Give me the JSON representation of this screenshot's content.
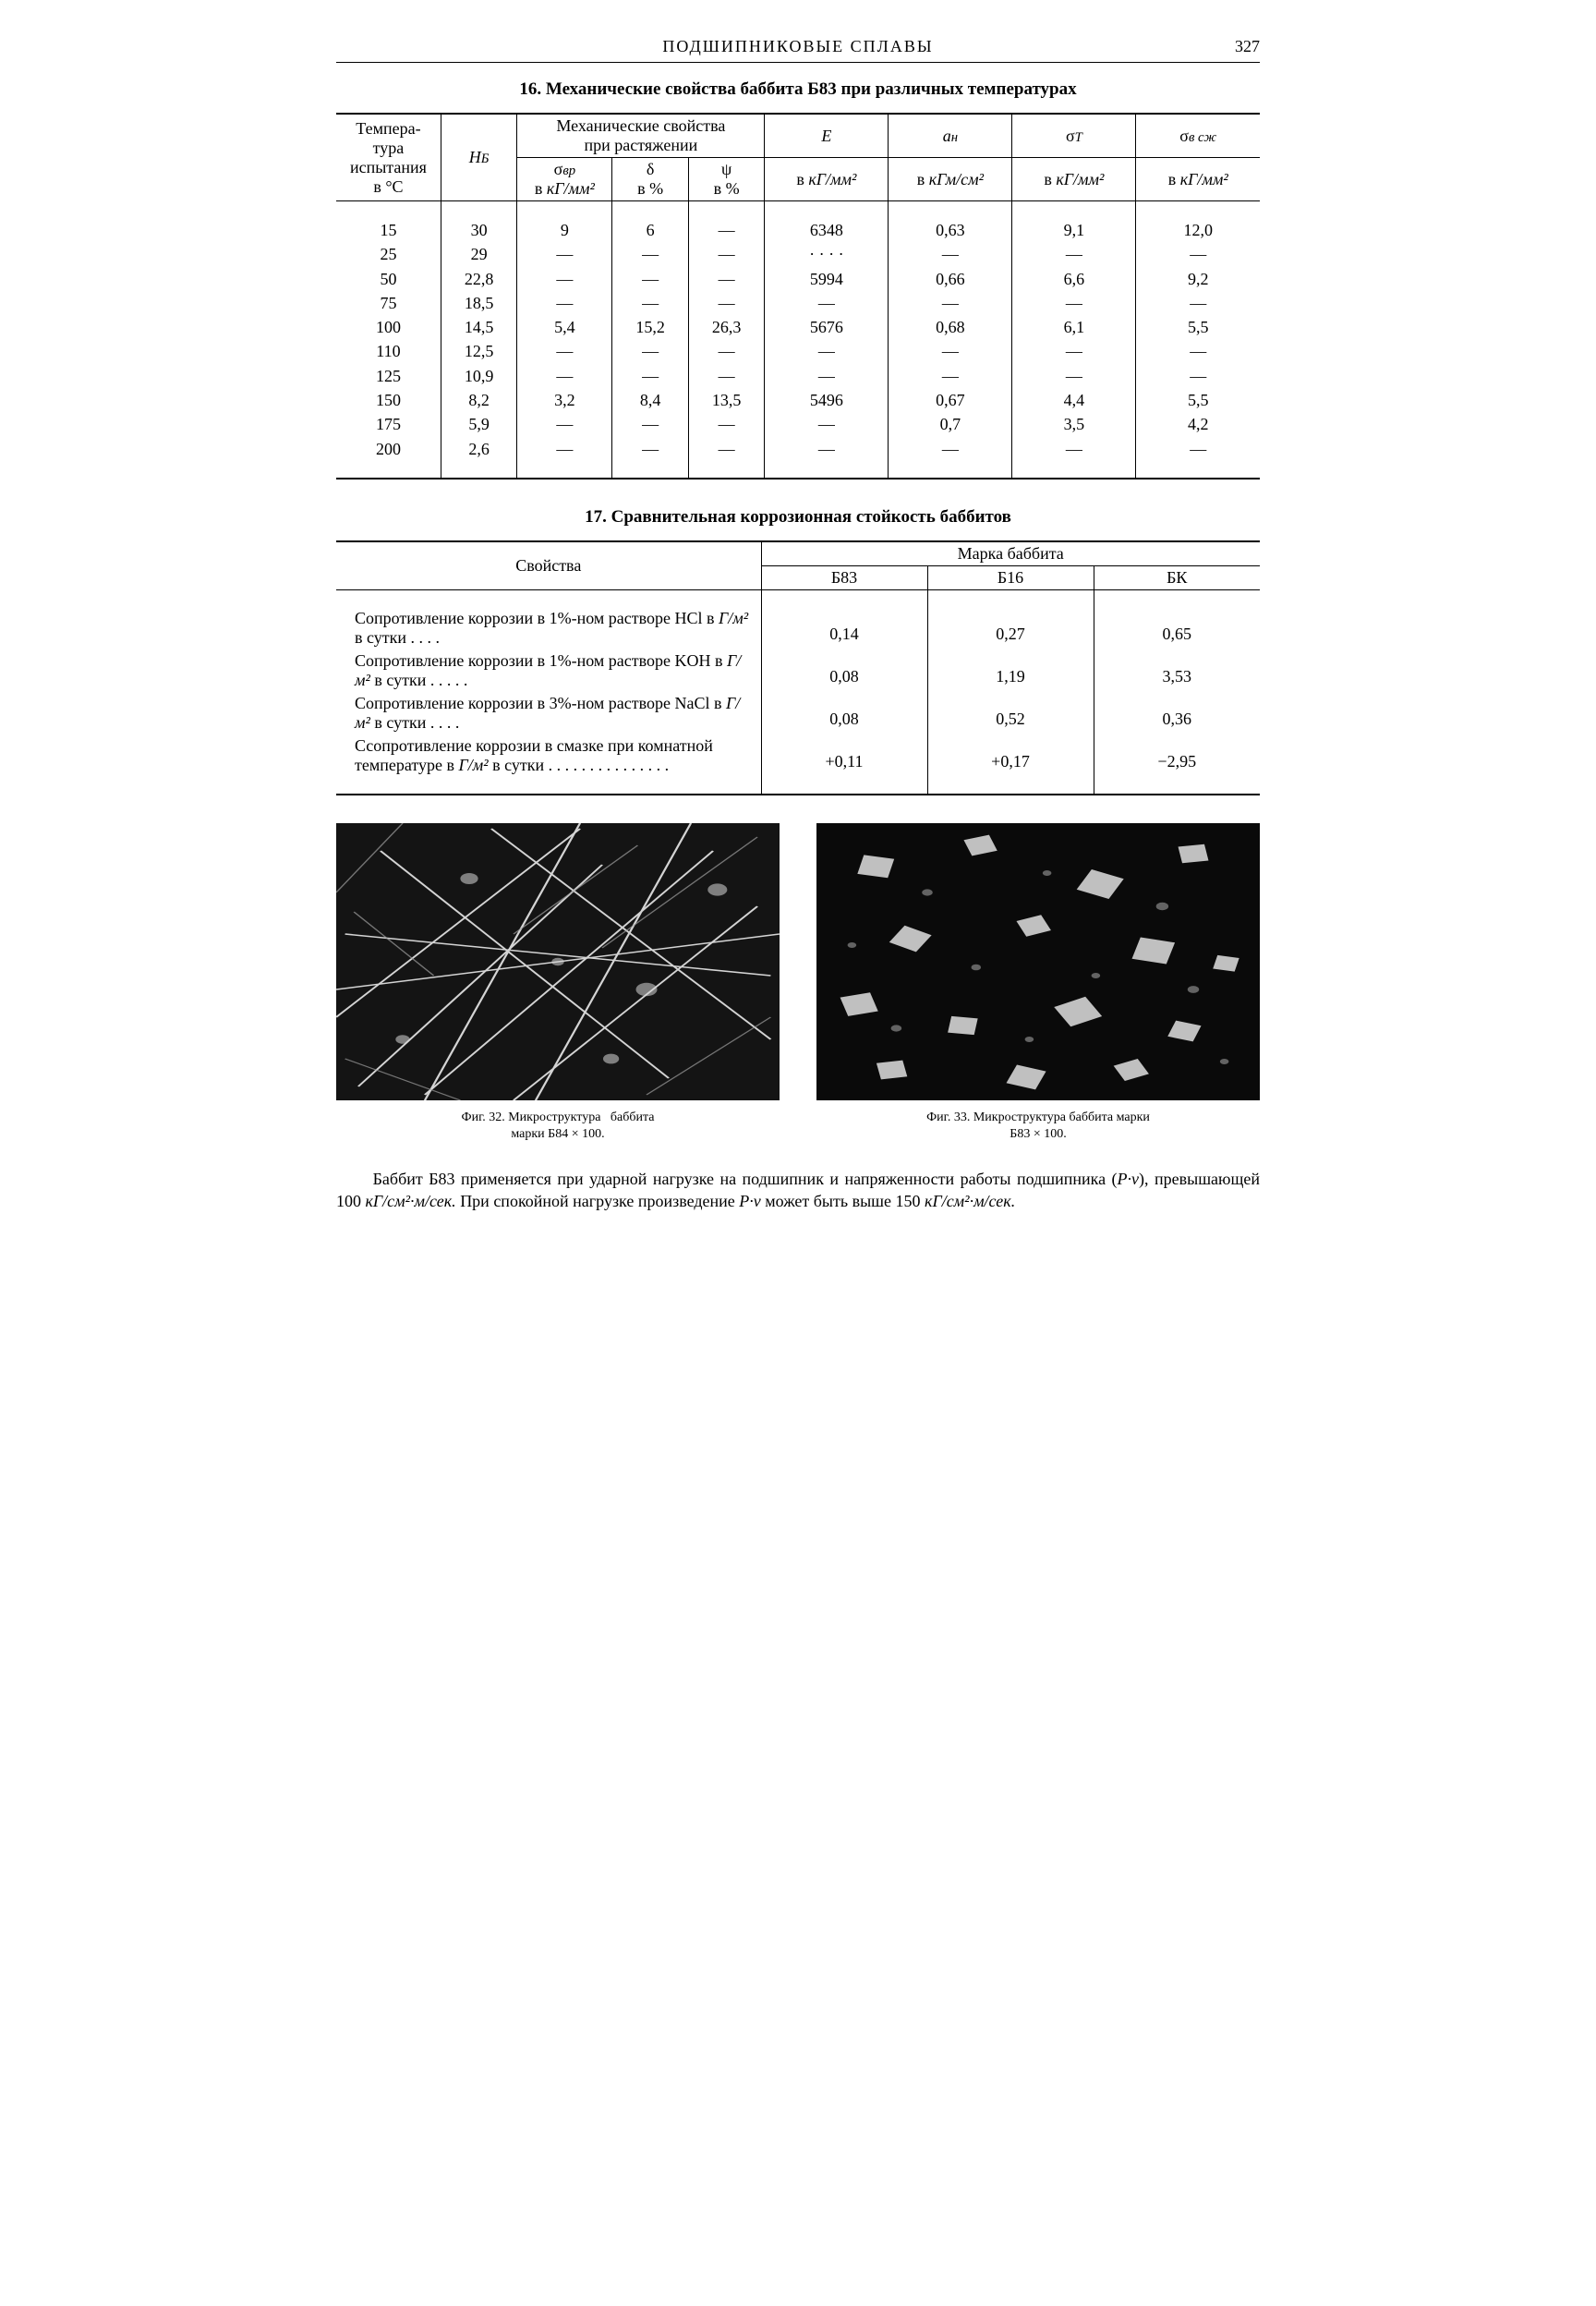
{
  "page": {
    "running_title": "ПОДШИПНИКОВЫЕ  СПЛАВЫ",
    "number": "327"
  },
  "colors": {
    "text": "#000000",
    "bg": "#ffffff",
    "rule": "#000000"
  },
  "typography": {
    "body_family": "Times New Roman",
    "body_pt": 10,
    "title_pt": 11,
    "figcap_pt": 8
  },
  "table16": {
    "title": "16. Механические свойства баббита Б83 при различных температурах",
    "header": {
      "temp": "Темпера-\nтура\nиспытания\nв °C",
      "hb": "H_Б",
      "mech_group": "Механические свойства\nпри растяжении",
      "sigma_vp": "σ_вр\nв кГ/мм²",
      "delta": "δ\nв %",
      "psi": "ψ\nв %",
      "E": "E",
      "E_unit": "в кГ/мм²",
      "aH": "a_н",
      "aH_unit": "в кГм/см²",
      "sigmaT": "σ_T",
      "sigmaT_unit": "в кГ/мм²",
      "sigma_comp": "σ_в сж",
      "sigma_comp_unit": "в кГ/мм²"
    },
    "rows": [
      {
        "t": "15",
        "HB": "30",
        "svp": "9",
        "d": "6",
        "p": "—",
        "E": "6348",
        "aH": "0,63",
        "sT": "9,1",
        "sc": "12,0"
      },
      {
        "t": "25",
        "HB": "29",
        "svp": "—",
        "d": "—",
        "p": "—",
        "E": "· · · ·",
        "aH": "—",
        "sT": "—",
        "sc": "—"
      },
      {
        "t": "50",
        "HB": "22,8",
        "svp": "—",
        "d": "—",
        "p": "—",
        "E": "5994",
        "aH": "0,66",
        "sT": "6,6",
        "sc": "9,2"
      },
      {
        "t": "75",
        "HB": "18,5",
        "svp": "—",
        "d": "—",
        "p": "—",
        "E": "—",
        "aH": "—",
        "sT": "—",
        "sc": "—"
      },
      {
        "t": "100",
        "HB": "14,5",
        "svp": "5,4",
        "d": "15,2",
        "p": "26,3",
        "E": "5676",
        "aH": "0,68",
        "sT": "6,1",
        "sc": "5,5"
      },
      {
        "t": "110",
        "HB": "12,5",
        "svp": "—",
        "d": "—",
        "p": "—",
        "E": "—",
        "aH": "—",
        "sT": "—",
        "sc": "—"
      },
      {
        "t": "125",
        "HB": "10,9",
        "svp": "—",
        "d": "—",
        "p": "—",
        "E": "—",
        "aH": "—",
        "sT": "—",
        "sc": "—"
      },
      {
        "t": "150",
        "HB": "8,2",
        "svp": "3,2",
        "d": "8,4",
        "p": "13,5",
        "E": "5496",
        "aH": "0,67",
        "sT": "4,4",
        "sc": "5,5"
      },
      {
        "t": "175",
        "HB": "5,9",
        "svp": "—",
        "d": "—",
        "p": "—",
        "E": "—",
        "aH": "0,7",
        "sT": "3,5",
        "sc": "4,2"
      },
      {
        "t": "200",
        "HB": "2,6",
        "svp": "—",
        "d": "—",
        "p": "—",
        "E": "—",
        "aH": "—",
        "sT": "—",
        "sc": "—"
      }
    ]
  },
  "table17": {
    "title": "17. Сравнительная коррозионная стойкость баббитов",
    "col_label": "Свойства",
    "group_label": "Марка баббита",
    "brands": [
      "Б83",
      "Б16",
      "БК"
    ],
    "rows": [
      {
        "label": "Сопротивление коррозии в 1%-ном растворе HCl в Г/м² в сутки . . . .",
        "b83": "0,14",
        "b16": "0,27",
        "bk": "0,65"
      },
      {
        "label": "Сопротивление коррозии в 1%-ном растворе KOH в Г/м² в сутки . . . . .",
        "b83": "0,08",
        "b16": "1,19",
        "bk": "3,53"
      },
      {
        "label": "Сопротивление коррозии в 3%-ном растворе NaCl в Г/м² в сутки . . . .",
        "b83": "0,08",
        "b16": "0,52",
        "bk": "0,36"
      },
      {
        "label": "Ссопротивление коррозии в смазке при комнатной температуре в Г/м² в сутки . . . . . . . . . . . . . . .",
        "b83": "+0,11",
        "b16": "+0,17",
        "bk": "−2,95"
      }
    ]
  },
  "figures": {
    "f32": {
      "caption": "Фиг. 32. Микроструктура баббита\nмарки Б84 × 100."
    },
    "f33": {
      "caption": "Фиг. 33. Микроструктура баббита марки\nБ83 × 100."
    }
  },
  "paragraph": "Баббит Б83 применяется при ударной нагрузке на подшипник и напряженности работы подшипника (P·v), превышающей 100 кГ/см²·м/сек. При спокойной нагрузке произведение P·v может быть выше 150 кГ/см²·м/сек."
}
